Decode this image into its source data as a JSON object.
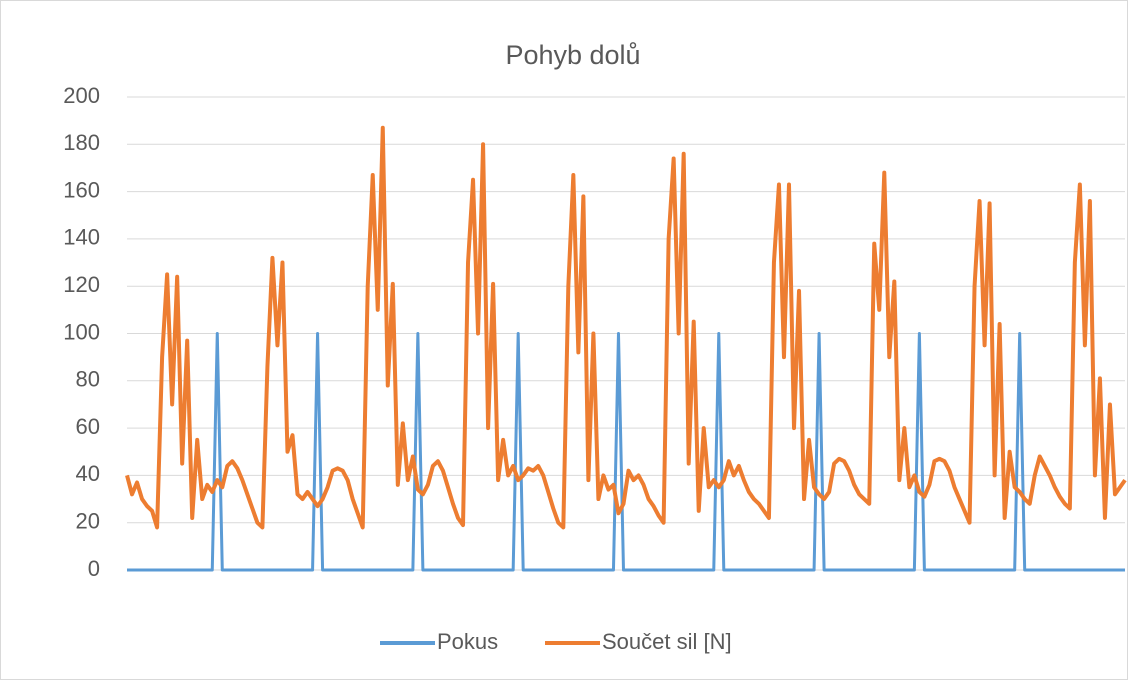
{
  "chart_data": {
    "type": "line",
    "title": "Pohyb dolů",
    "ylim": [
      0,
      200
    ],
    "yticks": [
      0,
      20,
      40,
      60,
      80,
      100,
      120,
      140,
      160,
      180,
      200
    ],
    "grid": true,
    "legend": "bottom",
    "series": [
      {
        "name": "Pokus",
        "color": "#5b9bd5",
        "values": [
          0,
          0,
          0,
          0,
          0,
          0,
          0,
          0,
          0,
          0,
          0,
          0,
          0,
          0,
          0,
          0,
          0,
          0,
          100,
          0,
          0,
          0,
          0,
          0,
          0,
          0,
          0,
          0,
          0,
          0,
          0,
          0,
          0,
          0,
          0,
          0,
          0,
          0,
          100,
          0,
          0,
          0,
          0,
          0,
          0,
          0,
          0,
          0,
          0,
          0,
          0,
          0,
          0,
          0,
          0,
          0,
          0,
          0,
          100,
          0,
          0,
          0,
          0,
          0,
          0,
          0,
          0,
          0,
          0,
          0,
          0,
          0,
          0,
          0,
          0,
          0,
          0,
          0,
          100,
          0,
          0,
          0,
          0,
          0,
          0,
          0,
          0,
          0,
          0,
          0,
          0,
          0,
          0,
          0,
          0,
          0,
          0,
          0,
          100,
          0,
          0,
          0,
          0,
          0,
          0,
          0,
          0,
          0,
          0,
          0,
          0,
          0,
          0,
          0,
          0,
          0,
          0,
          0,
          100,
          0,
          0,
          0,
          0,
          0,
          0,
          0,
          0,
          0,
          0,
          0,
          0,
          0,
          0,
          0,
          0,
          0,
          0,
          0,
          100,
          0,
          0,
          0,
          0,
          0,
          0,
          0,
          0,
          0,
          0,
          0,
          0,
          0,
          0,
          0,
          0,
          0,
          0,
          0,
          100,
          0,
          0,
          0,
          0,
          0,
          0,
          0,
          0,
          0,
          0,
          0,
          0,
          0,
          0,
          0,
          0,
          0,
          0,
          0,
          100,
          0,
          0,
          0,
          0,
          0,
          0,
          0,
          0,
          0,
          0,
          0,
          0,
          0,
          0,
          0,
          0,
          0,
          0,
          0,
          0,
          0
        ]
      },
      {
        "name": "Součet sil [N]",
        "color": "#ed7d31",
        "values": [
          40,
          32,
          37,
          30,
          27,
          25,
          18,
          90,
          125,
          70,
          124,
          45,
          97,
          22,
          55,
          30,
          36,
          33,
          38,
          35,
          44,
          46,
          43,
          38,
          32,
          26,
          20,
          18,
          86,
          132,
          95,
          130,
          50,
          57,
          32,
          30,
          33,
          30,
          27,
          30,
          35,
          42,
          43,
          42,
          38,
          30,
          24,
          18,
          120,
          167,
          110,
          187,
          78,
          121,
          36,
          62,
          38,
          48,
          34,
          32,
          36,
          44,
          46,
          42,
          35,
          28,
          22,
          19,
          130,
          165,
          100,
          180,
          60,
          121,
          38,
          55,
          40,
          44,
          38,
          40,
          43,
          42,
          44,
          40,
          33,
          26,
          20,
          18,
          120,
          167,
          92,
          158,
          38,
          100,
          30,
          40,
          34,
          36,
          24,
          28,
          42,
          38,
          40,
          36,
          30,
          27,
          23,
          20,
          140,
          174,
          100,
          176,
          45,
          105,
          25,
          60,
          35,
          38,
          35,
          38,
          46,
          40,
          44,
          38,
          33,
          30,
          28,
          25,
          22,
          130,
          163,
          90,
          163,
          60,
          118,
          30,
          55,
          35,
          32,
          30,
          33,
          45,
          47,
          46,
          42,
          36,
          32,
          30,
          28,
          138,
          110,
          168,
          90,
          122,
          38,
          60,
          35,
          40,
          33,
          31,
          36,
          46,
          47,
          46,
          42,
          35,
          30,
          25,
          20,
          120,
          156,
          95,
          155,
          40,
          104,
          22,
          50,
          35,
          33,
          30,
          28,
          40,
          48,
          44,
          40,
          35,
          31,
          28,
          26,
          130,
          163,
          95,
          156,
          40,
          81,
          22,
          70,
          32,
          35,
          38
        ]
      }
    ]
  }
}
